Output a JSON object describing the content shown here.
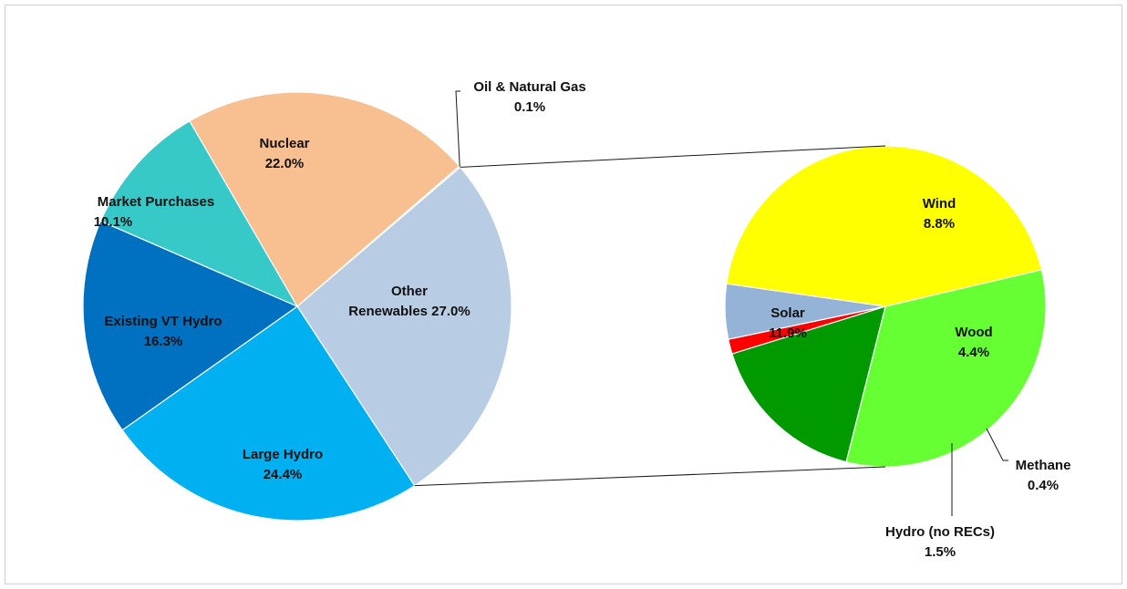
{
  "chart_data": [
    {
      "type": "pie",
      "slices": [
        {
          "label": "Other",
          "label2": "Renewables 27.0%",
          "value": 27.0,
          "color": "#b8cce4"
        },
        {
          "label": "Large Hydro",
          "label2": "24.4%",
          "value": 24.4,
          "color": "#00b0f0"
        },
        {
          "label": "Existing VT Hydro",
          "label2": "16.3%",
          "value": 16.3,
          "color": "#0070c0"
        },
        {
          "label": "Market Purchases",
          "label2": "10.1%",
          "value": 10.1,
          "color": "#37c8c8"
        },
        {
          "label": "Nuclear",
          "label2": "22.0%",
          "value": 22.0,
          "color": "#f8bf90"
        },
        {
          "label": "Oil & Natural Gas",
          "label2": "0.1%",
          "value": 0.1,
          "color": "#8a8a8a"
        }
      ]
    },
    {
      "type": "pie",
      "slices": [
        {
          "label": "Wind",
          "label2": "8.8%",
          "value": 8.8,
          "color": "#66ff33"
        },
        {
          "label": "Wood",
          "label2": "4.4%",
          "value": 4.4,
          "color": "#009900"
        },
        {
          "label": "Methane",
          "label2": "0.4%",
          "value": 0.4,
          "color": "#ff0000"
        },
        {
          "label": "Hydro (no RECs)",
          "label2": "1.5%",
          "value": 1.5,
          "color": "#95b3d7"
        },
        {
          "label": "Solar",
          "label2": "11.9%",
          "value": 11.9,
          "color": "#ffff00"
        }
      ]
    }
  ]
}
